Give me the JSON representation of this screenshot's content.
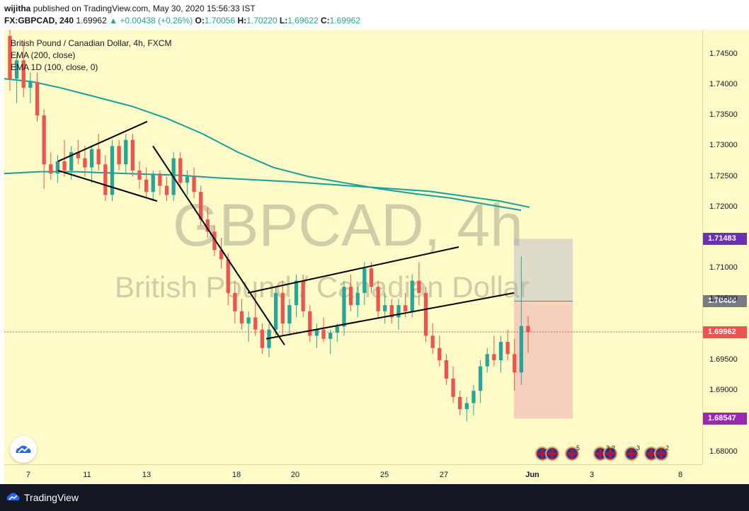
{
  "header": {
    "publisher": "wijitha",
    "published_text": "published on TradingView.com, May 30, 2020 15:56:33 IST",
    "symbol": "FX:GBPCAD, 240",
    "last": "1.69962",
    "change": "+0.00438 (+0.26%)",
    "o_label": "O:",
    "o": "1.70056",
    "h_label": "H:",
    "h": "1.70220",
    "l_label": "L:",
    "l": "1.69622",
    "c_label": "C:",
    "c": "1.69962"
  },
  "legend": {
    "title": "British Pound / Canadian Dollar, 4h, FXCM",
    "ema": "EMA (200, close)",
    "ema1d": "EMA 1D (100, close, 0)"
  },
  "watermark": {
    "symbol": "GBPCAD, 4h",
    "name": "British Pound / Canadian Dollar"
  },
  "price_axis": [
    "1.74500",
    "1.74000",
    "1.73500",
    "1.73000",
    "1.72500",
    "1.72000",
    "1.71000",
    "1.70500",
    "1.69500",
    "1.69000",
    "1.68000"
  ],
  "price_tags": {
    "target": "1.71483",
    "entry": "1.70466",
    "last": "1.69962",
    "stop": "1.68547"
  },
  "time_axis": [
    "7",
    "11",
    "13",
    "18",
    "20",
    "25",
    "27",
    "Jun",
    "3",
    "8"
  ],
  "events": {
    "count1": "5",
    "count2": "3",
    "count2b": "2",
    "count3": "3",
    "count4": "2"
  },
  "footer": {
    "brand": "TradingView"
  },
  "colors": {
    "background": "#fffbc8",
    "up": "#26a69a",
    "down": "#ef5350",
    "ema": "#17a09a",
    "target_tag": "#6a2fb5",
    "stop_tag": "#9c27b0",
    "entry_tag": "#787b86",
    "last_tag": "#ef5350"
  },
  "chart_data": {
    "type": "candlestick",
    "ylim": [
      1.678,
      1.749
    ],
    "candles": [
      [
        1.748,
        1.749,
        1.739,
        1.741
      ],
      [
        1.741,
        1.745,
        1.737,
        1.744
      ],
      [
        1.744,
        1.747,
        1.738,
        1.7395
      ],
      [
        1.7395,
        1.742,
        1.737,
        1.7405
      ],
      [
        1.7405,
        1.742,
        1.734,
        1.735
      ],
      [
        1.735,
        1.736,
        1.723,
        1.727
      ],
      [
        1.727,
        1.729,
        1.7245,
        1.7255
      ],
      [
        1.7255,
        1.7285,
        1.724,
        1.7275
      ],
      [
        1.7275,
        1.731,
        1.725,
        1.726
      ],
      [
        1.726,
        1.73,
        1.7245,
        1.729
      ],
      [
        1.729,
        1.731,
        1.727,
        1.728
      ],
      [
        1.728,
        1.73,
        1.725,
        1.7265
      ],
      [
        1.7265,
        1.73,
        1.724,
        1.7295
      ],
      [
        1.7295,
        1.732,
        1.726,
        1.727
      ],
      [
        1.727,
        1.7285,
        1.721,
        1.722
      ],
      [
        1.722,
        1.731,
        1.721,
        1.73
      ],
      [
        1.73,
        1.731,
        1.726,
        1.727
      ],
      [
        1.727,
        1.732,
        1.7255,
        1.731
      ],
      [
        1.731,
        1.732,
        1.725,
        1.726
      ],
      [
        1.726,
        1.7275,
        1.723,
        1.7245
      ],
      [
        1.7245,
        1.7265,
        1.7215,
        1.7225
      ],
      [
        1.7225,
        1.726,
        1.721,
        1.7255
      ],
      [
        1.7255,
        1.726,
        1.722,
        1.7235
      ],
      [
        1.7235,
        1.725,
        1.721,
        1.722
      ],
      [
        1.722,
        1.729,
        1.721,
        1.728
      ],
      [
        1.728,
        1.729,
        1.723,
        1.724
      ],
      [
        1.724,
        1.726,
        1.722,
        1.725
      ],
      [
        1.725,
        1.7265,
        1.7215,
        1.7225
      ],
      [
        1.7225,
        1.7235,
        1.717,
        1.718
      ],
      [
        1.718,
        1.72,
        1.715,
        1.716
      ],
      [
        1.716,
        1.717,
        1.712,
        1.713
      ],
      [
        1.713,
        1.715,
        1.71,
        1.7115
      ],
      [
        1.7115,
        1.7125,
        1.704,
        1.706
      ],
      [
        1.706,
        1.708,
        1.701,
        1.703
      ],
      [
        1.703,
        1.705,
        1.7,
        1.701
      ],
      [
        1.701,
        1.703,
        1.698,
        1.702
      ],
      [
        1.702,
        1.706,
        1.699,
        1.7
      ],
      [
        1.7,
        1.701,
        1.696,
        1.697
      ],
      [
        1.697,
        1.701,
        1.6955,
        1.7
      ],
      [
        1.7,
        1.707,
        1.699,
        1.706
      ],
      [
        1.706,
        1.708,
        1.699,
        1.701
      ],
      [
        1.701,
        1.705,
        1.699,
        1.704
      ],
      [
        1.704,
        1.709,
        1.702,
        1.708
      ],
      [
        1.708,
        1.709,
        1.702,
        1.703
      ],
      [
        1.703,
        1.704,
        1.698,
        1.699
      ],
      [
        1.699,
        1.701,
        1.697,
        1.7
      ],
      [
        1.7,
        1.702,
        1.698,
        1.6985
      ],
      [
        1.6985,
        1.7,
        1.696,
        1.6995
      ],
      [
        1.6995,
        1.701,
        1.698,
        1.7005
      ],
      [
        1.7005,
        1.708,
        1.699,
        1.707
      ],
      [
        1.707,
        1.709,
        1.703,
        1.704
      ],
      [
        1.704,
        1.707,
        1.702,
        1.706
      ],
      [
        1.706,
        1.711,
        1.704,
        1.71
      ],
      [
        1.71,
        1.711,
        1.706,
        1.707
      ],
      [
        1.707,
        1.708,
        1.702,
        1.703
      ],
      [
        1.703,
        1.706,
        1.701,
        1.704
      ],
      [
        1.704,
        1.705,
        1.701,
        1.702
      ],
      [
        1.702,
        1.705,
        1.7,
        1.704
      ],
      [
        1.704,
        1.706,
        1.702,
        1.703
      ],
      [
        1.703,
        1.709,
        1.702,
        1.708
      ],
      [
        1.708,
        1.711,
        1.704,
        1.706
      ],
      [
        1.706,
        1.707,
        1.698,
        1.699
      ],
      [
        1.699,
        1.701,
        1.696,
        1.697
      ],
      [
        1.697,
        1.699,
        1.694,
        1.695
      ],
      [
        1.695,
        1.696,
        1.691,
        1.692
      ],
      [
        1.692,
        1.694,
        1.688,
        1.689
      ],
      [
        1.689,
        1.69,
        1.686,
        1.687
      ],
      [
        1.687,
        1.689,
        1.685,
        1.688
      ],
      [
        1.688,
        1.691,
        1.686,
        1.69
      ],
      [
        1.69,
        1.695,
        1.688,
        1.694
      ],
      [
        1.694,
        1.697,
        1.693,
        1.696
      ],
      [
        1.696,
        1.699,
        1.694,
        1.695
      ],
      [
        1.695,
        1.699,
        1.693,
        1.698
      ],
      [
        1.698,
        1.7,
        1.695,
        1.696
      ],
      [
        1.696,
        1.6985,
        1.69,
        1.693
      ],
      [
        1.693,
        1.712,
        1.691,
        1.7006
      ],
      [
        1.7006,
        1.7022,
        1.6962,
        1.6996
      ]
    ],
    "ema_200": [
      [
        0,
        1.741
      ],
      [
        40,
        1.7405
      ],
      [
        80,
        1.7395
      ],
      [
        130,
        1.738
      ],
      [
        180,
        1.7365
      ],
      [
        230,
        1.7345
      ],
      [
        280,
        1.732
      ],
      [
        330,
        1.729
      ],
      [
        380,
        1.7265
      ],
      [
        430,
        1.725
      ],
      [
        480,
        1.724
      ],
      [
        530,
        1.723
      ],
      [
        580,
        1.7222
      ],
      [
        630,
        1.7215
      ],
      [
        680,
        1.7205
      ],
      [
        730,
        1.7195
      ]
    ],
    "ema_1d": [
      [
        0,
        1.7255
      ],
      [
        50,
        1.7258
      ],
      [
        100,
        1.7258
      ],
      [
        150,
        1.7256
      ],
      [
        200,
        1.7254
      ],
      [
        250,
        1.7252
      ],
      [
        300,
        1.7248
      ],
      [
        350,
        1.7245
      ],
      [
        400,
        1.7242
      ],
      [
        450,
        1.7238
      ],
      [
        500,
        1.7234
      ],
      [
        550,
        1.723
      ],
      [
        600,
        1.7226
      ],
      [
        650,
        1.7218
      ],
      [
        700,
        1.721
      ],
      [
        742,
        1.72
      ]
    ],
    "trendlines": [
      [
        [
          76,
          1.7275
        ],
        [
          202,
          1.734
        ]
      ],
      [
        [
          76,
          1.726
        ],
        [
          216,
          1.721
        ]
      ],
      [
        [
          210,
          1.73
        ],
        [
          396,
          1.6975
        ]
      ],
      [
        [
          344,
          1.706
        ],
        [
          642,
          1.7135
        ]
      ],
      [
        [
          370,
          1.6985
        ],
        [
          720,
          1.706
        ]
      ]
    ],
    "position": {
      "target": 1.71483,
      "entry": 1.70466,
      "stop": 1.68547
    },
    "last_price": 1.69962
  }
}
